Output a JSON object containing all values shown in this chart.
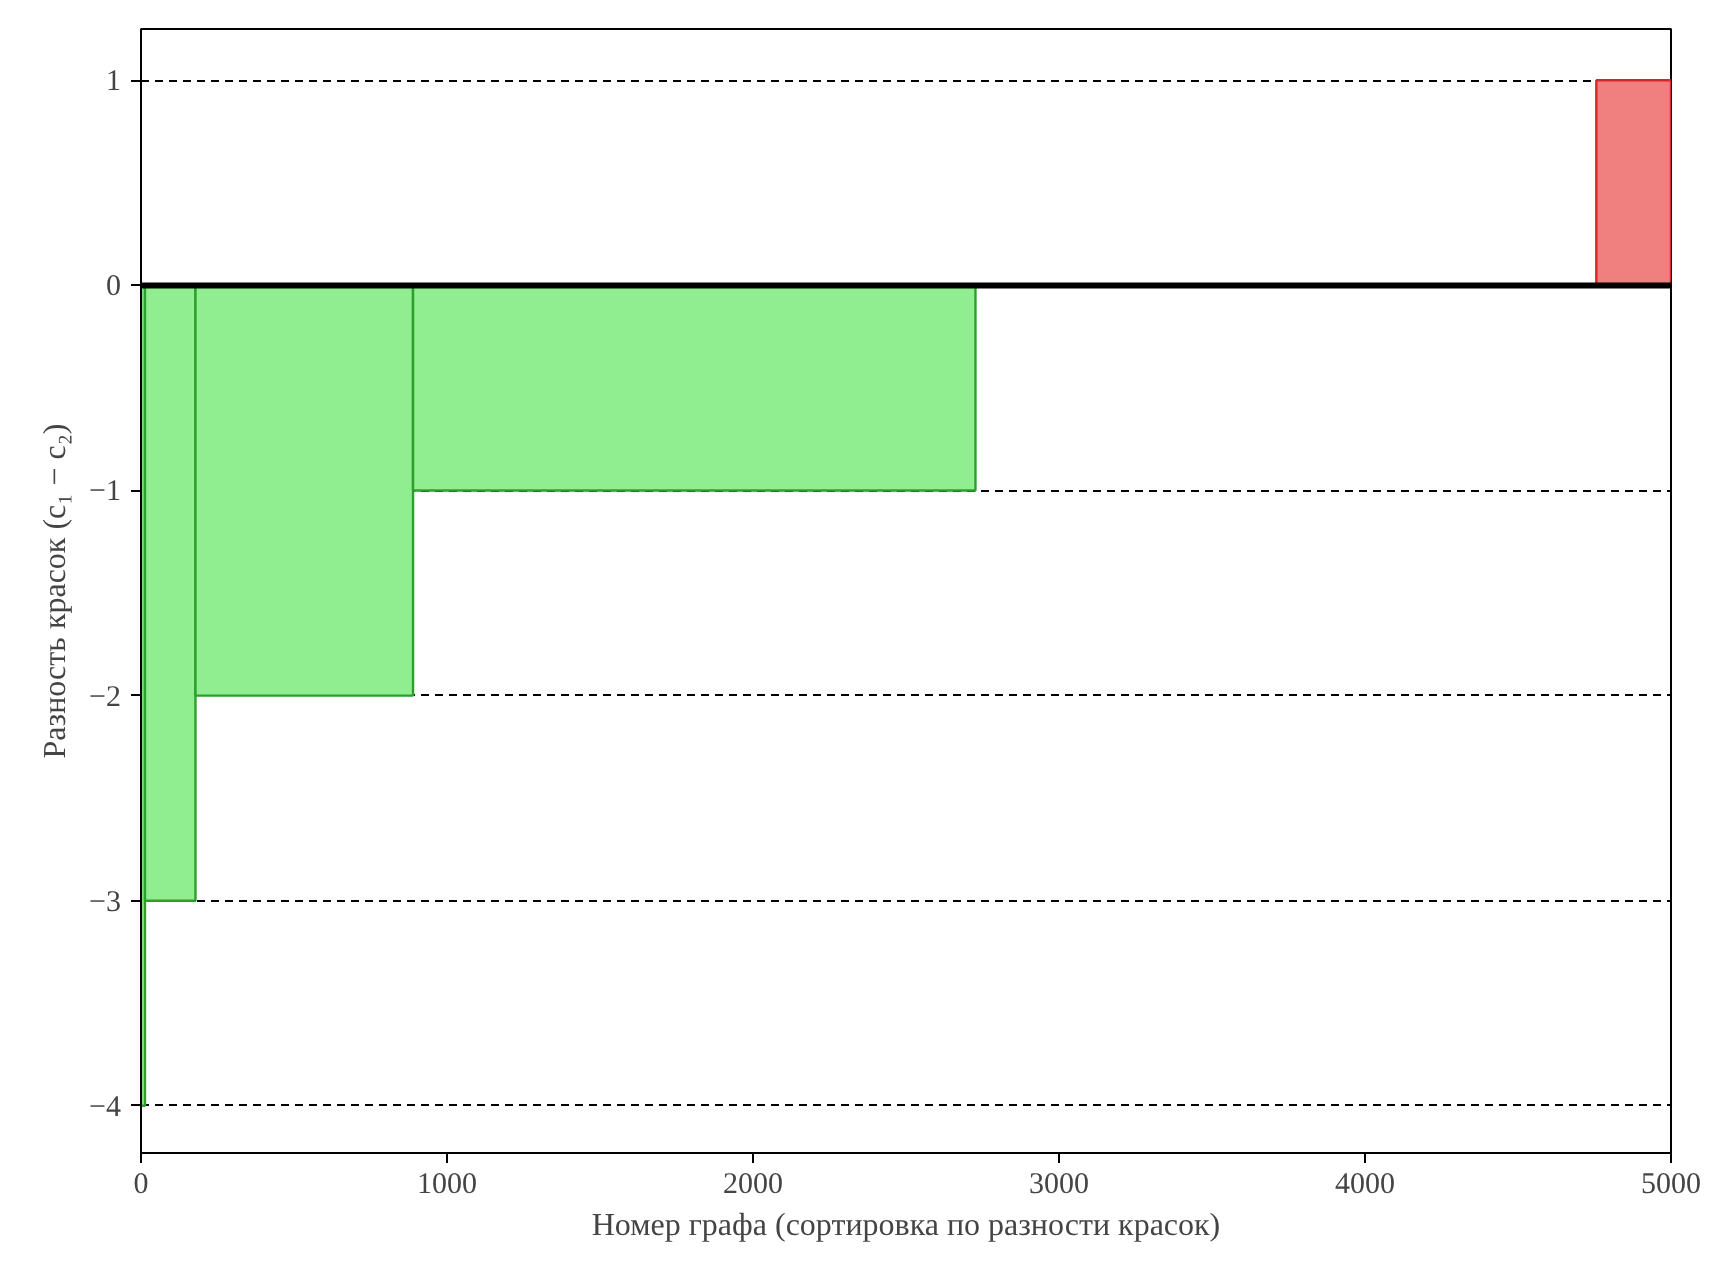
{
  "chart_data": {
    "type": "histogram",
    "xlabel": "Номер графа (сортировка по разности красок)",
    "ylabel": "Разность красок (c₁ − c₂)",
    "bins": [
      0,
      13,
      178,
      889,
      2727,
      4756,
      5000
    ],
    "values": [
      -4,
      -3,
      -2,
      -1,
      0,
      1
    ],
    "colors": [
      "#90ee90",
      "#90ee90",
      "#90ee90",
      "#90ee90",
      "#90ee90",
      "#f08080"
    ],
    "xlim": [
      0,
      5000
    ],
    "ylim": [
      -4.23,
      1.25
    ],
    "xticks": [
      0,
      1000,
      2000,
      3000,
      4000,
      5000
    ],
    "yticks": [
      {
        "value": -4,
        "label": "−4"
      },
      {
        "value": -3,
        "label": "−3"
      },
      {
        "value": -2,
        "label": "−2"
      },
      {
        "value": -1,
        "label": "−1"
      },
      0,
      1
    ],
    "grid": "y",
    "line_style": "dashed",
    "ref_lines": [
      {
        "axis": "y",
        "value": 0,
        "color": "#000000",
        "line_style": "solid"
      }
    ]
  }
}
